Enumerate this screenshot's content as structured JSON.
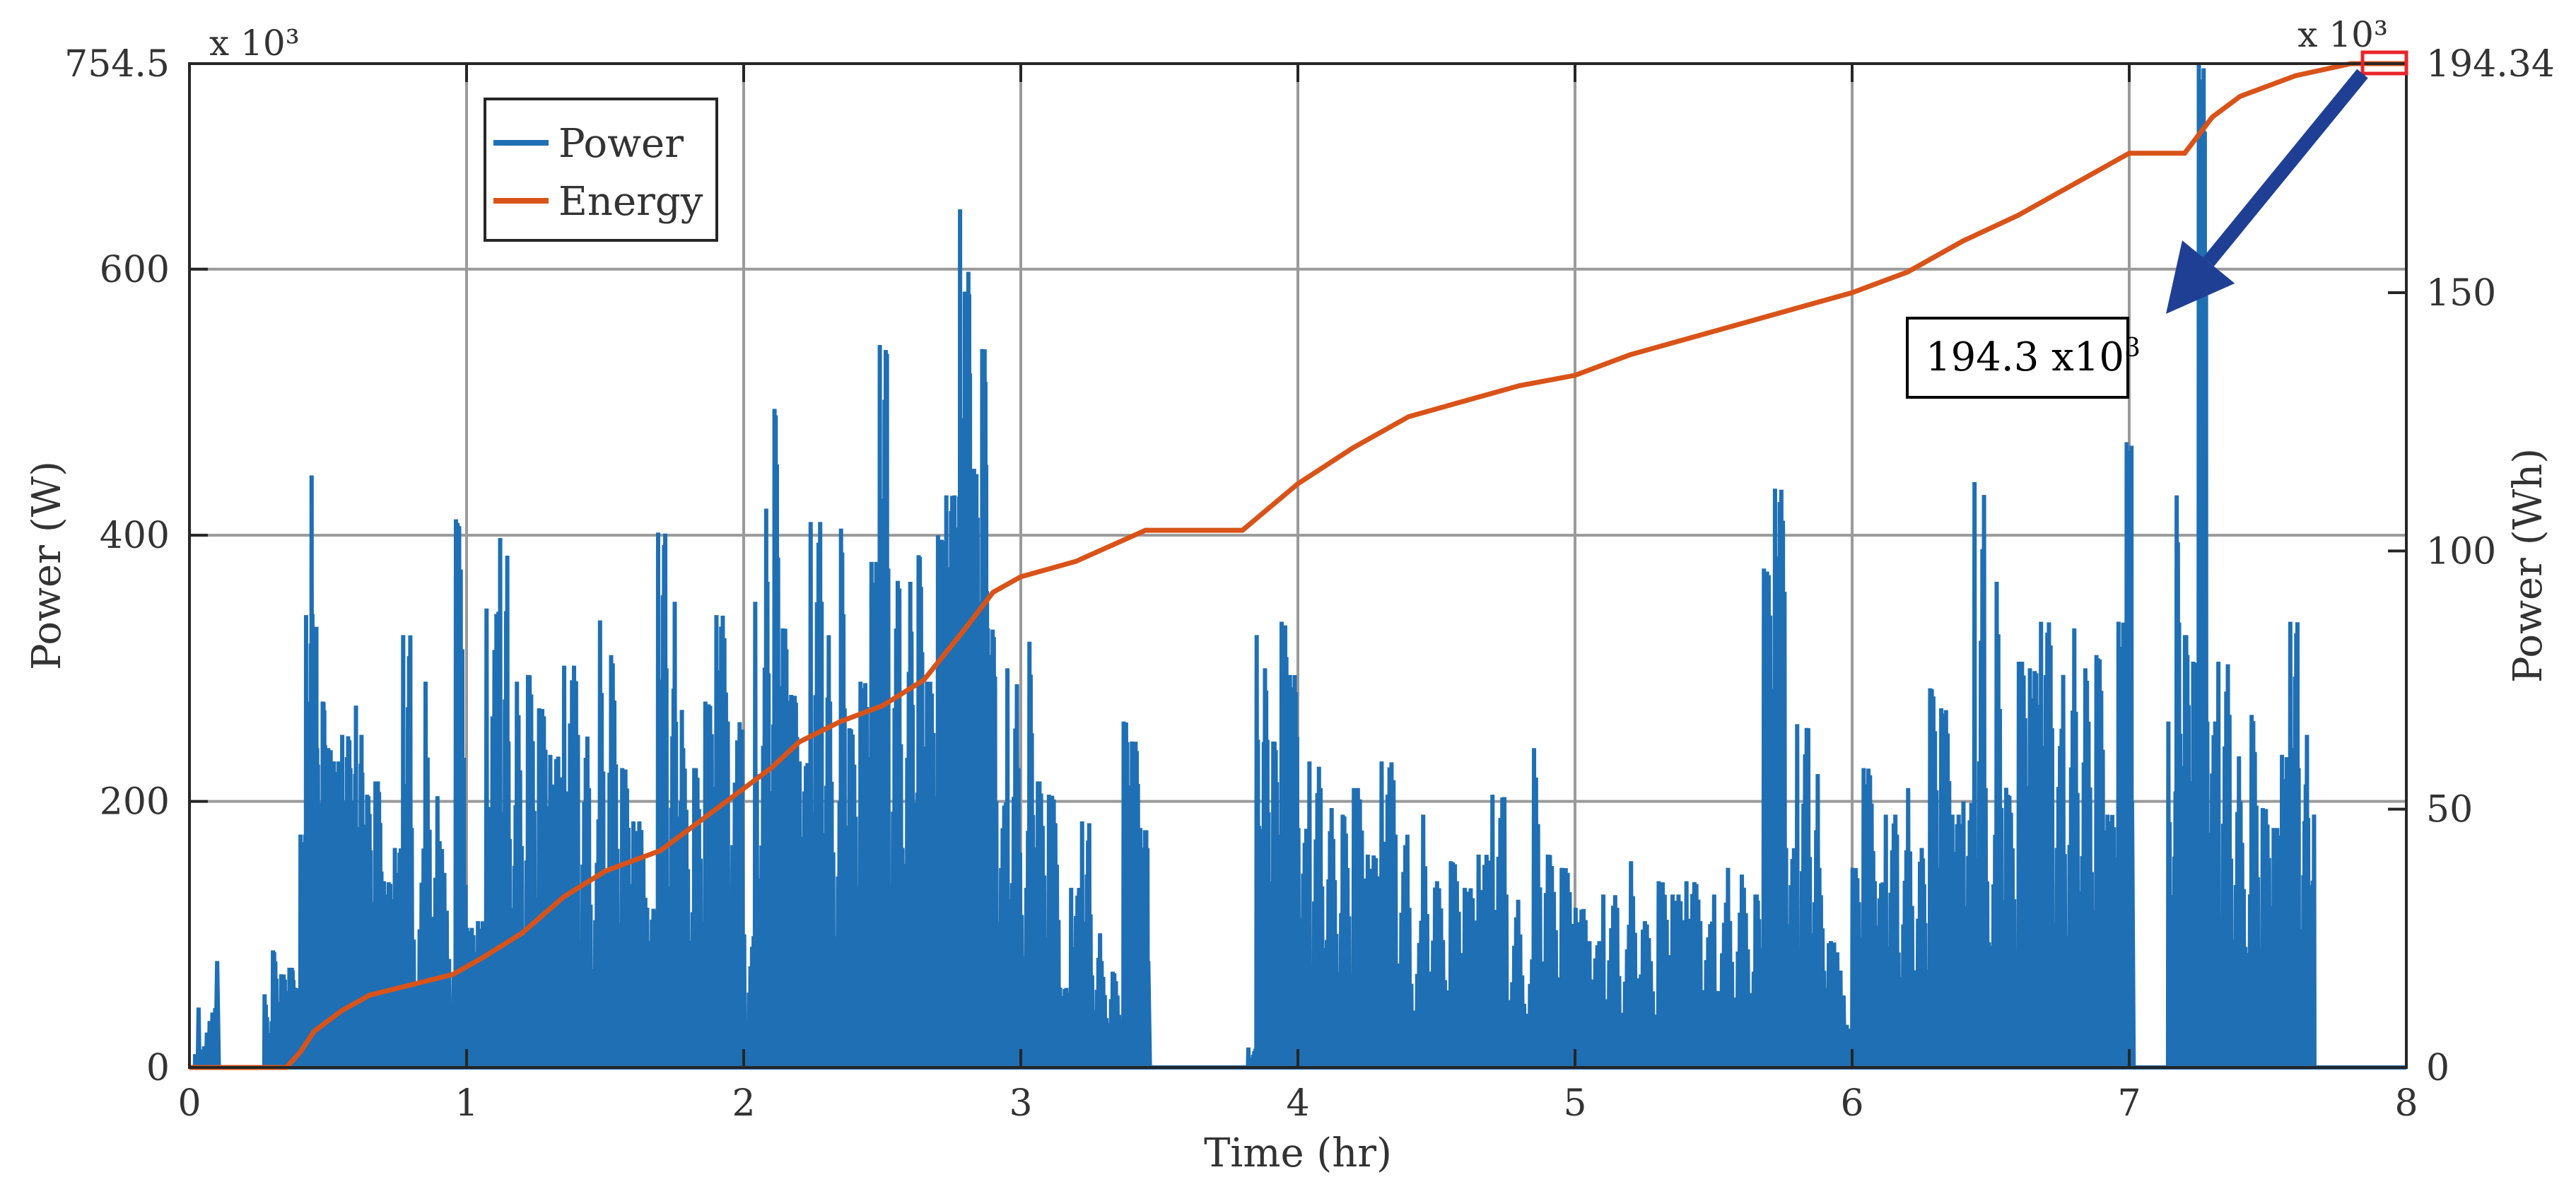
{
  "chart_data": {
    "type": "line",
    "title": "",
    "xlabel": "Time (hr)",
    "ylabel_left": "Power (W)",
    "ylabel_right": "Power (Wh)",
    "xlim": [
      0,
      8
    ],
    "ylim_left": [
      0,
      754.5
    ],
    "ylim_right": [
      0,
      194.34
    ],
    "x_ticks": [
      "0",
      "1",
      "2",
      "3",
      "4",
      "5",
      "6",
      "7",
      "8"
    ],
    "y_left_ticks": [
      "0",
      "200",
      "400",
      "600",
      "754.5"
    ],
    "y_right_ticks": [
      "0",
      "50",
      "100",
      "150",
      "194.34"
    ],
    "y_left_exponent": "x 10³",
    "y_right_exponent": "x 10³",
    "grid": true,
    "legend_position": "top-left",
    "series": [
      {
        "name": "Power",
        "axis": "left",
        "color": "#1f6fb4",
        "style": "dense spikes",
        "peaks": [
          [
            0.02,
            10
          ],
          [
            0.03,
            45
          ],
          [
            0.1,
            80
          ],
          [
            0.27,
            55
          ],
          [
            0.3,
            88
          ],
          [
            0.33,
            70
          ],
          [
            0.36,
            75
          ],
          [
            0.38,
            60
          ],
          [
            0.4,
            175
          ],
          [
            0.42,
            340
          ],
          [
            0.44,
            445
          ],
          [
            0.46,
            240
          ],
          [
            0.48,
            275
          ],
          [
            0.5,
            240
          ],
          [
            0.52,
            230
          ],
          [
            0.55,
            250
          ],
          [
            0.58,
            225
          ],
          [
            0.6,
            272
          ],
          [
            0.62,
            250
          ],
          [
            0.64,
            205
          ],
          [
            0.67,
            215
          ],
          [
            0.7,
            140
          ],
          [
            0.74,
            165
          ],
          [
            0.77,
            325
          ],
          [
            0.8,
            180
          ],
          [
            0.85,
            290
          ],
          [
            0.9,
            170
          ],
          [
            0.96,
            412
          ],
          [
            1.0,
            105
          ],
          [
            1.04,
            110
          ],
          [
            1.07,
            345
          ],
          [
            1.12,
            398
          ],
          [
            1.15,
            245
          ],
          [
            1.18,
            290
          ],
          [
            1.22,
            295
          ],
          [
            1.26,
            270
          ],
          [
            1.3,
            235
          ],
          [
            1.35,
            302
          ],
          [
            1.4,
            250
          ],
          [
            1.44,
            210
          ],
          [
            1.48,
            336
          ],
          [
            1.52,
            310
          ],
          [
            1.56,
            225
          ],
          [
            1.6,
            185
          ],
          [
            1.65,
            120
          ],
          [
            1.69,
            402
          ],
          [
            1.72,
            300
          ],
          [
            1.75,
            350
          ],
          [
            1.78,
            240
          ],
          [
            1.82,
            225
          ],
          [
            1.86,
            275
          ],
          [
            1.9,
            340
          ],
          [
            1.94,
            260
          ],
          [
            2.0,
            100
          ],
          [
            2.04,
            350
          ],
          [
            2.08,
            420
          ],
          [
            2.11,
            495
          ],
          [
            2.14,
            330
          ],
          [
            2.17,
            280
          ],
          [
            2.2,
            230
          ],
          [
            2.24,
            410
          ],
          [
            2.28,
            350
          ],
          [
            2.31,
            275
          ],
          [
            2.35,
            405
          ],
          [
            2.38,
            255
          ],
          [
            2.42,
            290
          ],
          [
            2.46,
            380
          ],
          [
            2.49,
            543
          ],
          [
            2.52,
            375
          ],
          [
            2.56,
            360
          ],
          [
            2.6,
            365
          ],
          [
            2.63,
            385
          ],
          [
            2.66,
            290
          ],
          [
            2.7,
            400
          ],
          [
            2.73,
            430
          ],
          [
            2.76,
            430
          ],
          [
            2.78,
            645
          ],
          [
            2.8,
            380
          ],
          [
            2.81,
            598
          ],
          [
            2.83,
            450
          ],
          [
            2.86,
            540
          ],
          [
            2.88,
            330
          ],
          [
            2.91,
            200
          ],
          [
            2.95,
            300
          ],
          [
            2.99,
            225
          ],
          [
            3.03,
            320
          ],
          [
            3.06,
            215
          ],
          [
            3.1,
            205
          ],
          [
            3.14,
            60
          ],
          [
            3.18,
            135
          ],
          [
            3.22,
            185
          ],
          [
            3.25,
            115
          ],
          [
            3.29,
            80
          ],
          [
            3.33,
            72
          ],
          [
            3.37,
            260
          ],
          [
            3.4,
            245
          ],
          [
            3.43,
            180
          ],
          [
            3.46,
            80
          ],
          [
            3.82,
            15
          ],
          [
            3.85,
            325
          ],
          [
            3.88,
            300
          ],
          [
            3.91,
            245
          ],
          [
            3.94,
            335
          ],
          [
            3.97,
            295
          ],
          [
            4.0,
            180
          ],
          [
            4.04,
            230
          ],
          [
            4.08,
            210
          ],
          [
            4.12,
            195
          ],
          [
            4.16,
            190
          ],
          [
            4.2,
            210
          ],
          [
            4.25,
            160
          ],
          [
            4.3,
            230
          ],
          [
            4.35,
            175
          ],
          [
            4.4,
            120
          ],
          [
            4.45,
            190
          ],
          [
            4.5,
            140
          ],
          [
            4.55,
            155
          ],
          [
            4.6,
            135
          ],
          [
            4.65,
            160
          ],
          [
            4.7,
            205
          ],
          [
            4.75,
            130
          ],
          [
            4.8,
            100
          ],
          [
            4.85,
            240
          ],
          [
            4.9,
            160
          ],
          [
            4.95,
            150
          ],
          [
            5.0,
            120
          ],
          [
            5.05,
            95
          ],
          [
            5.1,
            130
          ],
          [
            5.15,
            120
          ],
          [
            5.2,
            155
          ],
          [
            5.25,
            110
          ],
          [
            5.3,
            140
          ],
          [
            5.35,
            130
          ],
          [
            5.4,
            140
          ],
          [
            5.45,
            110
          ],
          [
            5.5,
            130
          ],
          [
            5.55,
            150
          ],
          [
            5.6,
            145
          ],
          [
            5.65,
            130
          ],
          [
            5.68,
            375
          ],
          [
            5.72,
            435
          ],
          [
            5.76,
            165
          ],
          [
            5.8,
            258
          ],
          [
            5.84,
            255
          ],
          [
            5.88,
            150
          ],
          [
            5.92,
            95
          ],
          [
            6.0,
            150
          ],
          [
            6.04,
            225
          ],
          [
            6.08,
            140
          ],
          [
            6.12,
            190
          ],
          [
            6.16,
            175
          ],
          [
            6.2,
            210
          ],
          [
            6.25,
            165
          ],
          [
            6.28,
            285
          ],
          [
            6.32,
            270
          ],
          [
            6.36,
            190
          ],
          [
            6.4,
            200
          ],
          [
            6.44,
            440
          ],
          [
            6.48,
            210
          ],
          [
            6.52,
            365
          ],
          [
            6.56,
            205
          ],
          [
            6.6,
            305
          ],
          [
            6.64,
            300
          ],
          [
            6.68,
            335
          ],
          [
            6.72,
            255
          ],
          [
            6.76,
            295
          ],
          [
            6.8,
            330
          ],
          [
            6.84,
            300
          ],
          [
            6.88,
            310
          ],
          [
            6.92,
            190
          ],
          [
            6.96,
            335
          ],
          [
            6.99,
            470
          ],
          [
            7.01,
            200
          ],
          [
            7.14,
            260
          ],
          [
            7.17,
            430
          ],
          [
            7.2,
            325
          ],
          [
            7.23,
            305
          ],
          [
            7.25,
            754.5
          ],
          [
            7.28,
            260
          ],
          [
            7.32,
            305
          ],
          [
            7.36,
            265
          ],
          [
            7.4,
            200
          ],
          [
            7.44,
            265
          ],
          [
            7.48,
            195
          ],
          [
            7.52,
            180
          ],
          [
            7.55,
            235
          ],
          [
            7.58,
            335
          ],
          [
            7.61,
            225
          ],
          [
            7.64,
            250
          ]
        ]
      },
      {
        "name": "Energy",
        "axis": "right",
        "color": "#d95319",
        "x": [
          0,
          0.35,
          0.4,
          0.45,
          0.55,
          0.65,
          0.8,
          0.95,
          1.05,
          1.2,
          1.35,
          1.5,
          1.7,
          1.85,
          1.95,
          2.0,
          2.1,
          2.2,
          2.35,
          2.5,
          2.65,
          2.8,
          2.9,
          3.0,
          3.2,
          3.45,
          3.6,
          3.8,
          4.0,
          4.2,
          4.4,
          4.6,
          4.8,
          5.0,
          5.2,
          5.4,
          5.6,
          5.8,
          6.0,
          6.2,
          6.4,
          6.6,
          6.8,
          7.0,
          7.2,
          7.3,
          7.4,
          7.6,
          7.8,
          8.0
        ],
        "y": [
          0,
          0,
          3,
          7,
          11,
          14,
          16,
          18,
          21,
          26,
          33,
          38,
          42,
          48,
          52,
          54,
          58,
          63,
          67,
          70,
          75,
          85,
          92,
          95,
          98,
          104,
          104,
          104,
          113,
          120,
          126,
          129,
          132,
          134,
          138,
          141,
          144,
          147,
          150,
          154,
          160,
          165,
          171,
          177,
          177,
          184,
          188,
          192,
          194.34,
          194.34
        ]
      }
    ],
    "annotation": {
      "text_main": "194.3 x10",
      "text_sup": "3",
      "points_to": [
        8.0,
        194.34
      ]
    }
  }
}
